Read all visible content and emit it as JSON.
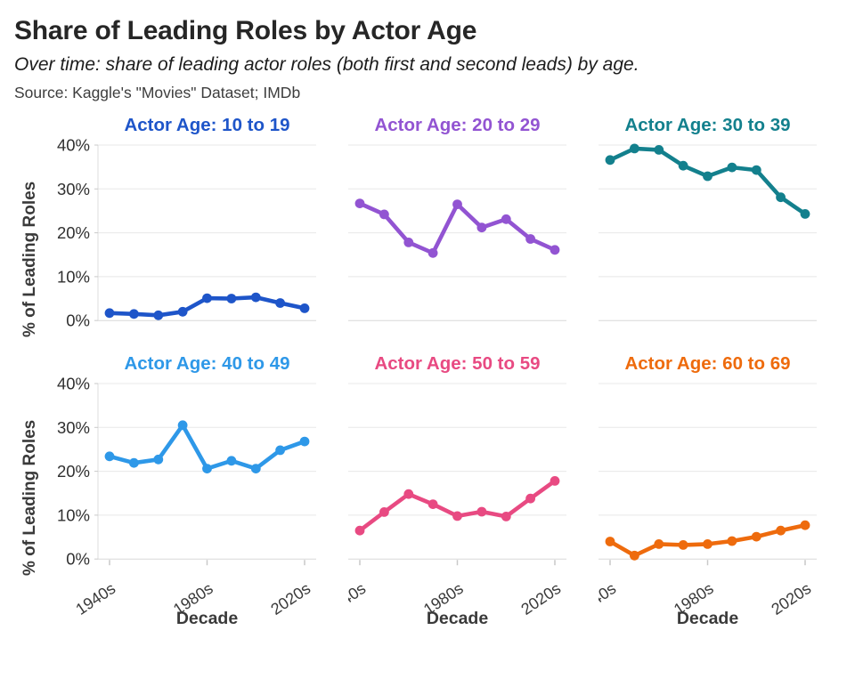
{
  "header": {
    "title": "Share of Leading Roles by Actor Age",
    "subtitle": "Over time: share of leading actor roles (both first and second leads) by age.",
    "source": "Source: Kaggle's \"Movies\" Dataset; IMDb"
  },
  "axes": {
    "y_label": "% of Leading Roles",
    "x_label": "Decade",
    "y_ticks": [
      "40%",
      "30%",
      "20%",
      "10%",
      "0%"
    ],
    "y_tick_values": [
      40,
      30,
      20,
      10,
      0
    ],
    "x_ticks": [
      "1940s",
      "1980s",
      "2020s"
    ],
    "x_tick_indices": [
      0,
      4,
      8
    ]
  },
  "chart_data": {
    "type": "line",
    "layout": "small-multiples-2x3",
    "x": [
      "1940s",
      "1950s",
      "1960s",
      "1970s",
      "1980s",
      "1990s",
      "2000s",
      "2010s",
      "2020s"
    ],
    "xlabel": "Decade",
    "ylabel": "% of Leading Roles",
    "ylim": [
      0,
      40
    ],
    "y_tick_step": 10,
    "grid": true,
    "series": [
      {
        "name": "Actor Age: 10 to 19",
        "color": "#1e55c9",
        "values": [
          1.7,
          1.5,
          1.2,
          2.0,
          5.1,
          5.0,
          5.3,
          4.0,
          2.8
        ]
      },
      {
        "name": "Actor Age: 20 to 29",
        "color": "#9254d2",
        "values": [
          26.7,
          24.2,
          17.8,
          15.4,
          26.5,
          21.2,
          23.1,
          18.6,
          16.1
        ]
      },
      {
        "name": "Actor Age: 30 to 39",
        "color": "#13808d",
        "values": [
          36.6,
          39.2,
          38.9,
          35.3,
          32.9,
          34.9,
          34.3,
          28.1,
          24.3
        ]
      },
      {
        "name": "Actor Age: 40 to 49",
        "color": "#2e98e8",
        "values": [
          23.4,
          21.9,
          22.7,
          30.5,
          20.6,
          22.4,
          20.6,
          24.8,
          26.8
        ]
      },
      {
        "name": "Actor Age: 50 to 59",
        "color": "#e84a82",
        "values": [
          6.5,
          10.7,
          14.8,
          12.5,
          9.8,
          10.8,
          9.7,
          13.8,
          17.8
        ]
      },
      {
        "name": "Actor Age: 60 to 69",
        "color": "#ee6b0d",
        "values": [
          4.0,
          0.8,
          3.4,
          3.2,
          3.4,
          4.1,
          5.1,
          6.5,
          7.7
        ]
      }
    ]
  },
  "colors": {
    "gridline": "#e8e8e8",
    "zero_line": "#d8d8d8",
    "axis_line": "#dcdcdc",
    "tick_mark": "#c9c9c9",
    "tick_text": "#303030",
    "axis_text": "#3a3a3a"
  }
}
